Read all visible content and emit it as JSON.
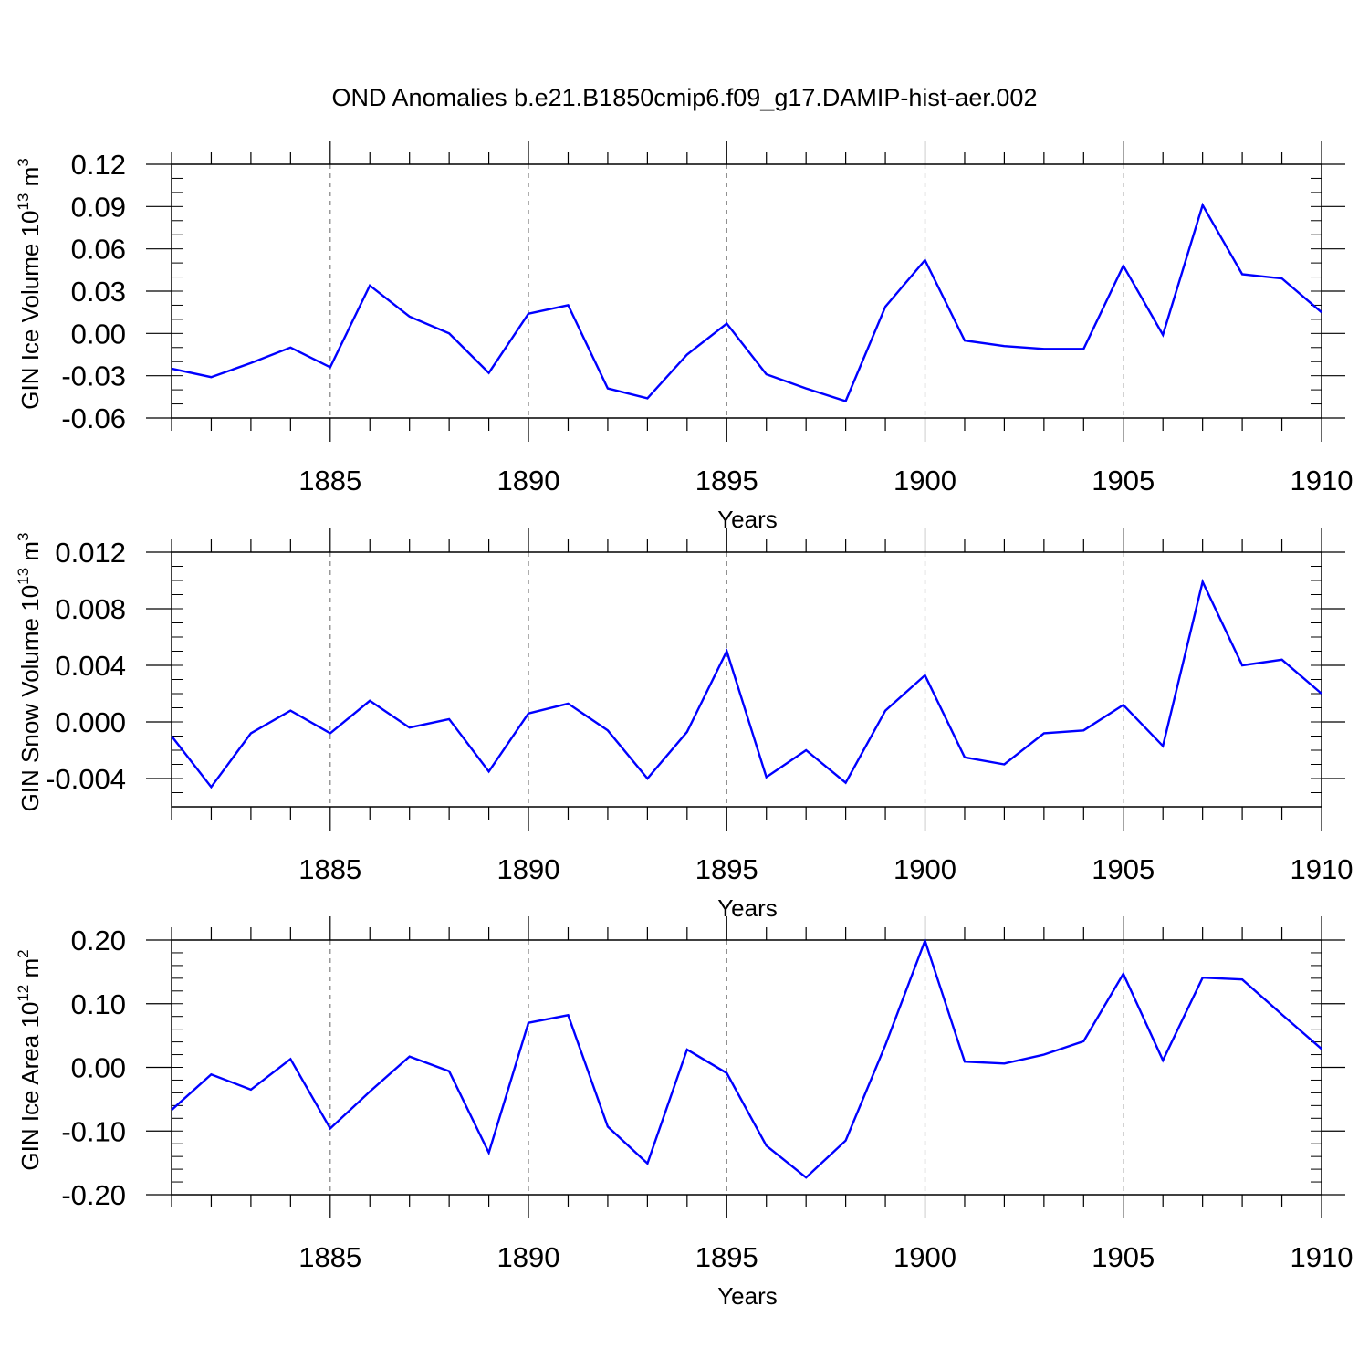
{
  "title": "OND Anomalies b.e21.B1850cmip6.f09_g17.DAMIP-hist-aer.002",
  "colors": {
    "line": "#0000ff",
    "axis": "#000000",
    "grid": "#808080"
  },
  "chart_data": [
    {
      "type": "line",
      "name": "ice-volume",
      "ylabel_main": "GIN Ice Volume 10",
      "ylabel_exp": "13",
      "ylabel_unit": " m",
      "ylabel_unit_exp": "3",
      "xlabel": "Years",
      "xlim": [
        1881,
        1910
      ],
      "ylim": [
        -0.06,
        0.12
      ],
      "xticks": [
        1885,
        1890,
        1895,
        1900,
        1905,
        1910
      ],
      "xtick_labels": [
        "1885",
        "1890",
        "1895",
        "1900",
        "1905",
        "1910"
      ],
      "yticks": [
        -0.06,
        -0.03,
        0.0,
        0.03,
        0.06,
        0.09,
        0.12
      ],
      "ytick_labels": [
        "-0.06",
        "-0.03",
        "0.00",
        "0.03",
        "0.06",
        "0.09",
        "0.12"
      ],
      "yminor_step": 0.01,
      "x": [
        1881,
        1882,
        1883,
        1884,
        1885,
        1886,
        1887,
        1888,
        1889,
        1890,
        1891,
        1892,
        1893,
        1894,
        1895,
        1896,
        1897,
        1898,
        1899,
        1900,
        1901,
        1902,
        1903,
        1904,
        1905,
        1906,
        1907,
        1908,
        1909,
        1910
      ],
      "values": [
        -0.025,
        -0.031,
        -0.021,
        -0.01,
        -0.024,
        0.034,
        0.012,
        0.0,
        -0.028,
        0.014,
        0.02,
        -0.039,
        -0.046,
        -0.015,
        0.007,
        -0.029,
        -0.039,
        -0.048,
        0.019,
        0.052,
        -0.005,
        -0.009,
        -0.011,
        -0.011,
        0.048,
        -0.001,
        0.091,
        0.042,
        0.039,
        0.015
      ]
    },
    {
      "type": "line",
      "name": "snow-volume",
      "ylabel_main": "GIN Snow Volume 10",
      "ylabel_exp": "13",
      "ylabel_unit": " m",
      "ylabel_unit_exp": "3",
      "xlabel": "Years",
      "xlim": [
        1881,
        1910
      ],
      "ylim": [
        -0.006,
        0.012
      ],
      "xticks": [
        1885,
        1890,
        1895,
        1900,
        1905,
        1910
      ],
      "xtick_labels": [
        "1885",
        "1890",
        "1895",
        "1900",
        "1905",
        "1910"
      ],
      "yticks": [
        -0.004,
        0.0,
        0.004,
        0.008,
        0.012
      ],
      "ytick_labels": [
        "-0.004",
        "0.000",
        "0.004",
        "0.008",
        "0.012"
      ],
      "yminor_step": 0.001,
      "x": [
        1881,
        1882,
        1883,
        1884,
        1885,
        1886,
        1887,
        1888,
        1889,
        1890,
        1891,
        1892,
        1893,
        1894,
        1895,
        1896,
        1897,
        1898,
        1899,
        1900,
        1901,
        1902,
        1903,
        1904,
        1905,
        1906,
        1907,
        1908,
        1909,
        1910
      ],
      "values": [
        -0.001,
        -0.0046,
        -0.0008,
        0.0008,
        -0.0008,
        0.0015,
        -0.0004,
        0.0002,
        -0.0035,
        0.0006,
        0.0013,
        -0.0006,
        -0.004,
        -0.0007,
        0.005,
        -0.0039,
        -0.002,
        -0.0043,
        0.0008,
        0.0033,
        -0.0025,
        -0.003,
        -0.0008,
        -0.0006,
        0.0012,
        -0.0017,
        0.0099,
        0.004,
        0.0044,
        0.002
      ]
    },
    {
      "type": "line",
      "name": "ice-area",
      "ylabel_main": "GIN Ice Area 10",
      "ylabel_exp": "12",
      "ylabel_unit": " m",
      "ylabel_unit_exp": "2",
      "xlabel": "Years",
      "xlim": [
        1881,
        1910
      ],
      "ylim": [
        -0.2,
        0.2
      ],
      "xticks": [
        1885,
        1890,
        1895,
        1900,
        1905,
        1910
      ],
      "xtick_labels": [
        "1885",
        "1890",
        "1895",
        "1900",
        "1905",
        "1910"
      ],
      "yticks": [
        -0.2,
        -0.1,
        0.0,
        0.1,
        0.2
      ],
      "ytick_labels": [
        "-0.20",
        "-0.10",
        "0.00",
        "0.10",
        "0.20"
      ],
      "yminor_step": 0.02,
      "x": [
        1881,
        1882,
        1883,
        1884,
        1885,
        1886,
        1887,
        1888,
        1889,
        1890,
        1891,
        1892,
        1893,
        1894,
        1895,
        1896,
        1897,
        1898,
        1899,
        1900,
        1901,
        1902,
        1903,
        1904,
        1905,
        1906,
        1907,
        1908,
        1909,
        1910
      ],
      "values": [
        -0.067,
        -0.011,
        -0.035,
        0.013,
        -0.096,
        -0.038,
        0.017,
        -0.006,
        -0.134,
        0.07,
        0.082,
        -0.093,
        -0.151,
        0.028,
        -0.009,
        -0.123,
        -0.173,
        -0.115,
        0.035,
        0.199,
        0.009,
        0.006,
        0.02,
        0.041,
        0.147,
        0.011,
        0.141,
        0.138,
        0.083,
        0.029
      ]
    }
  ]
}
